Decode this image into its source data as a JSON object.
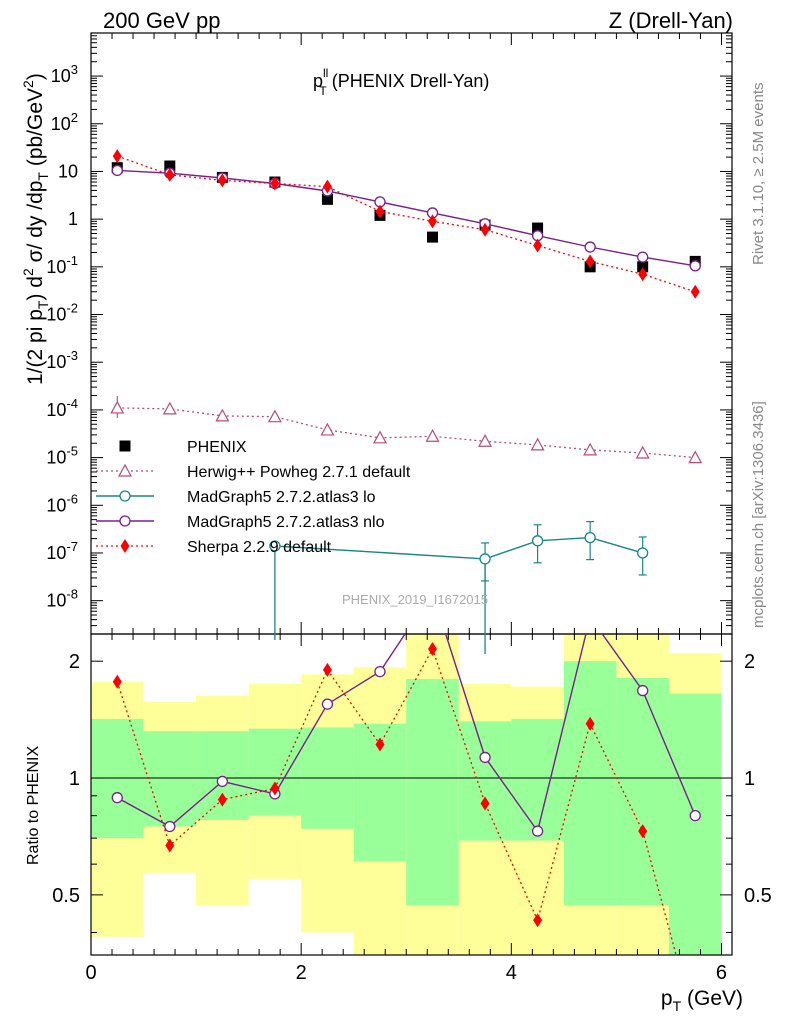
{
  "header": {
    "left": "200 GeV pp",
    "right": "Z (Drell-Yan)"
  },
  "side_labels": {
    "rivet": "Rivet 3.1.10, ≥ 2.5M events",
    "mcplots": "mcplots.cern.ch [arXiv:1306.3436]"
  },
  "watermark": "PHENIX_2019_I1672015",
  "chart_data": [
    {
      "type": "scatter",
      "title": "p_T^ll (PHENIX Drell-Yan)",
      "title_parts": {
        "p": "p",
        "sup": "ll",
        "sub": "T",
        "rest": " (PHENIX Drell-Yan)"
      },
      "ylabel": "1/(2 pi p_T) d^2 σ/ dy /dp_T (pb/GeV^2)",
      "yscale": "log",
      "xlim": [
        0,
        6.1
      ],
      "ylim": [
        2e-09,
        8000
      ],
      "y_tick_labels": [
        "10^-8",
        "10^-7",
        "10^-6",
        "10^-5",
        "10^-4",
        "10^-3",
        "10^-2",
        "10^-1",
        "1",
        "10",
        "10^2",
        "10^3"
      ],
      "legend_position": "middle-left",
      "series": [
        {
          "name": "PHENIX",
          "style": "data",
          "color": "#000000",
          "x": [
            0.25,
            0.75,
            1.25,
            1.75,
            2.25,
            2.75,
            3.25,
            3.75,
            4.25,
            4.75,
            5.25,
            5.75
          ],
          "y": [
            12,
            13,
            7.5,
            6,
            2.6,
            1.2,
            0.42,
            0.75,
            0.65,
            0.1,
            0.1,
            0.13
          ]
        },
        {
          "name": "Herwig++ Powheg 2.7.1 default",
          "style": "dotted-triangle",
          "color": "#b84a78",
          "x": [
            0.25,
            0.75,
            1.25,
            1.75,
            2.25,
            2.75,
            3.25,
            3.75,
            4.25,
            4.75,
            5.25,
            5.75
          ],
          "y": [
            0.00011,
            0.000105,
            7.5e-05,
            7.2e-05,
            3.8e-05,
            2.6e-05,
            2.8e-05,
            2.2e-05,
            1.85e-05,
            1.45e-05,
            1.25e-05,
            1e-05
          ]
        },
        {
          "name": "MadGraph5 2.7.2.atlas3 lo",
          "style": "solid-circle",
          "color": "#17878a",
          "x": [
            1.75,
            3.75,
            4.25,
            4.75,
            5.25
          ],
          "y": [
            1.4e-07,
            7.5e-08,
            1.8e-07,
            2.1e-07,
            1e-07
          ]
        },
        {
          "name": "MadGraph5 2.7.2.atlas3 nlo",
          "style": "solid-circle",
          "color": "#7a1d8e",
          "x": [
            0.25,
            0.75,
            1.25,
            1.75,
            2.25,
            2.75,
            3.25,
            3.75,
            4.25,
            4.75,
            5.25,
            5.75
          ],
          "y": [
            10.5,
            9.2,
            7.3,
            5.6,
            3.9,
            2.3,
            1.35,
            0.8,
            0.45,
            0.26,
            0.16,
            0.105
          ]
        },
        {
          "name": "Sherpa 2.2.9 default",
          "style": "dotted-diamond",
          "color": "#ff0000",
          "x": [
            0.25,
            0.75,
            1.25,
            1.75,
            2.25,
            2.75,
            3.25,
            3.75,
            4.25,
            4.75,
            5.25,
            5.75
          ],
          "y": [
            21,
            8.5,
            6.5,
            5.6,
            4.8,
            1.45,
            0.9,
            0.6,
            0.28,
            0.13,
            0.07,
            0.03
          ]
        }
      ]
    },
    {
      "type": "line",
      "ylabel": "Ratio to PHENIX",
      "xlabel": "p_T (GeV)",
      "xlabel_parts": {
        "p": "p",
        "sub": "T",
        "rest": " (GeV)"
      },
      "xlim": [
        0,
        6.1
      ],
      "ylim": [
        0.35,
        2.35
      ],
      "yscale": "log",
      "x_ticks": [
        0,
        2,
        4,
        6
      ],
      "y_ticks": [
        0.5,
        1,
        2
      ],
      "bands": {
        "edges": [
          0,
          0.5,
          1,
          1.5,
          2,
          2.5,
          3,
          3.5,
          4,
          4.5,
          5,
          5.5,
          6
        ],
        "inner": [
          [
            0.7,
            1.42
          ],
          [
            0.75,
            1.32
          ],
          [
            0.78,
            1.32
          ],
          [
            0.8,
            1.34
          ],
          [
            0.74,
            1.35
          ],
          [
            0.61,
            1.38
          ],
          [
            0.47,
            1.8
          ],
          [
            0.69,
            1.4
          ],
          [
            0.69,
            1.42
          ],
          [
            0.47,
            2.0
          ],
          [
            0.47,
            1.81
          ],
          [
            0.35,
            1.65
          ]
        ],
        "outer": [
          [
            0.39,
            1.77
          ],
          [
            0.57,
            1.57
          ],
          [
            0.47,
            1.63
          ],
          [
            0.55,
            1.75
          ],
          [
            0.4,
            1.85
          ],
          [
            0.32,
            1.93
          ],
          [
            0.2,
            2.8
          ],
          [
            0.35,
            1.75
          ],
          [
            0.35,
            1.72
          ],
          [
            0.2,
            3.5
          ],
          [
            0.2,
            2.6
          ],
          [
            0.41,
            2.1
          ]
        ]
      },
      "series": [
        {
          "name": "MadGraph5 2.7.2.atlas3 lo",
          "style": "solid-circle",
          "color": "#17878a",
          "x": [],
          "y": []
        },
        {
          "name": "MadGraph5 2.7.2.atlas3 nlo",
          "style": "solid-circle",
          "color": "#7a1d8e",
          "x": [
            0.25,
            0.75,
            1.25,
            1.75,
            2.25,
            2.75,
            3.25,
            3.75,
            4.25,
            4.75,
            5.25,
            5.75
          ],
          "y": [
            0.89,
            0.75,
            0.98,
            0.91,
            1.55,
            1.88,
            3.0,
            1.13,
            0.73,
            2.6,
            1.68,
            0.8
          ]
        },
        {
          "name": "Sherpa 2.2.9 default",
          "style": "dotted-diamond",
          "color": "#ff0000",
          "x": [
            0.25,
            0.75,
            1.25,
            1.75,
            2.25,
            2.75,
            3.25,
            3.75,
            4.25,
            4.75,
            5.25,
            5.75
          ],
          "y": [
            1.77,
            0.67,
            0.88,
            0.94,
            1.9,
            1.22,
            2.15,
            0.86,
            0.43,
            1.38,
            0.73,
            0.23
          ]
        }
      ]
    }
  ]
}
